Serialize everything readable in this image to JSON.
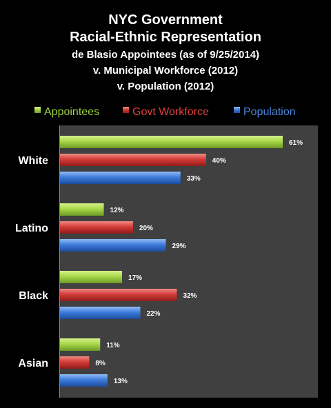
{
  "chart_data": {
    "type": "bar",
    "orientation": "horizontal",
    "title": [
      "NYC Government",
      "Racial-Ethnic Representation",
      "de Blasio Appointees (as of 9/25/2014)",
      "v. Municipal Workforce (2012)",
      "v. Population (2012)"
    ],
    "categories": [
      "White",
      "Latino",
      "Black",
      "Asian"
    ],
    "series": [
      {
        "name": "Appointees",
        "color": "#9bd040",
        "values": [
          61,
          12,
          17,
          11
        ],
        "labels": [
          "61%",
          "12%",
          "17%",
          "11%"
        ]
      },
      {
        "name": "Govt Workforce",
        "color": "#d03a3a",
        "values": [
          40,
          20,
          32,
          8
        ],
        "labels": [
          "40%",
          "20%",
          "32%",
          "8%"
        ]
      },
      {
        "name": "Population",
        "color": "#3a78d8",
        "values": [
          33,
          29,
          22,
          13
        ],
        "labels": [
          "33%",
          "29%",
          "22%",
          "13%"
        ]
      }
    ],
    "xlim": [
      0,
      66
    ],
    "legend_position": "top",
    "grid": false,
    "plot_background": "#404040"
  }
}
